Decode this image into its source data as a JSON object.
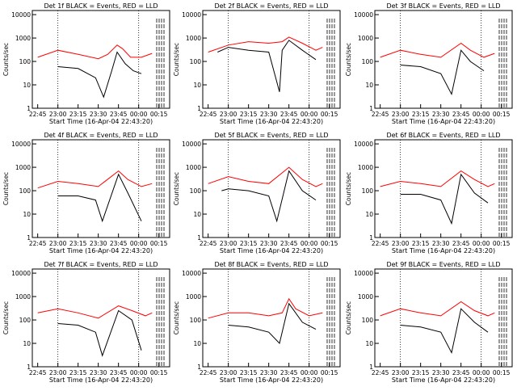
{
  "figure": {
    "ylabel": "Counts/sec",
    "xlabel": "Start Time (16-Apr-04 22:43:20)"
  },
  "colors": {
    "events": "#000000",
    "lld": "#ff0000",
    "axes": "#000000",
    "background": "#ffffff"
  },
  "chart_data": [
    {
      "type": "line",
      "title": "Det 1f BLACK = Events, RED = LLD",
      "xlabel": "Start Time (16-Apr-04 22:43:20)",
      "ylabel": "Counts/sec",
      "x_ticks": [
        "22:45",
        "23:00",
        "23:15",
        "23:30",
        "23:45",
        "00:00",
        "00:15"
      ],
      "y_ticks": [
        "1",
        "10",
        "100",
        "1000",
        "10000"
      ],
      "ylim": [
        1,
        15000
      ],
      "yscale": "log",
      "series": [
        {
          "name": "LLD",
          "color": "red",
          "x": [
            "22:45",
            "23:00",
            "23:15",
            "23:30",
            "23:37",
            "23:44",
            "23:48",
            "23:54",
            "24:02",
            "24:10"
          ],
          "y": [
            150,
            300,
            200,
            130,
            200,
            500,
            350,
            150,
            150,
            220
          ]
        },
        {
          "name": "Events",
          "color": "black",
          "x": [
            "23:00",
            "23:15",
            "23:28",
            "23:34",
            "23:40",
            "23:44",
            "23:50",
            "23:56",
            "24:02"
          ],
          "y": [
            60,
            50,
            20,
            3,
            40,
            250,
            80,
            40,
            30
          ]
        }
      ]
    },
    {
      "type": "line",
      "title": "Det 2f BLACK = Events, RED = LLD",
      "xlabel": "Start Time (16-Apr-04 22:43:20)",
      "ylabel": "Counts/sec",
      "x_ticks": [
        "22:45",
        "23:00",
        "23:15",
        "23:30",
        "23:45",
        "00:00",
        "00:15"
      ],
      "y_ticks": [
        "1",
        "10",
        "100",
        "1000",
        "10000"
      ],
      "ylim": [
        1,
        15000
      ],
      "yscale": "log",
      "series": [
        {
          "name": "LLD",
          "color": "red",
          "x": [
            "22:45",
            "23:00",
            "23:15",
            "23:30",
            "23:40",
            "23:45",
            "23:55",
            "24:05",
            "24:10"
          ],
          "y": [
            250,
            500,
            700,
            600,
            700,
            1100,
            600,
            300,
            400
          ]
        },
        {
          "name": "Events",
          "color": "black",
          "x": [
            "22:52",
            "23:00",
            "23:15",
            "23:30",
            "23:38",
            "23:40",
            "23:45",
            "23:55",
            "24:05"
          ],
          "y": [
            250,
            400,
            300,
            250,
            5,
            300,
            800,
            300,
            120
          ]
        }
      ]
    },
    {
      "type": "line",
      "title": "Det 3f BLACK = Events, RED = LLD",
      "xlabel": "Start Time (16-Apr-04 22:43:20)",
      "ylabel": "Counts/sec",
      "x_ticks": [
        "22:45",
        "23:00",
        "23:15",
        "23:30",
        "23:45",
        "00:00",
        "00:15"
      ],
      "y_ticks": [
        "1",
        "10",
        "100",
        "1000",
        "10000"
      ],
      "ylim": [
        1,
        15000
      ],
      "yscale": "log",
      "series": [
        {
          "name": "LLD",
          "color": "red",
          "x": [
            "22:45",
            "23:00",
            "23:15",
            "23:30",
            "23:45",
            "23:52",
            "24:02",
            "24:10"
          ],
          "y": [
            150,
            300,
            200,
            150,
            600,
            300,
            150,
            220
          ]
        },
        {
          "name": "Events",
          "color": "black",
          "x": [
            "23:00",
            "23:15",
            "23:30",
            "23:38",
            "23:45",
            "23:52",
            "24:02"
          ],
          "y": [
            70,
            60,
            30,
            4,
            300,
            100,
            40
          ]
        }
      ]
    },
    {
      "type": "line",
      "title": "Det 4f BLACK = Events, RED = LLD",
      "xlabel": "Start Time (16-Apr-04 22:43:20)",
      "ylabel": "Counts/sec",
      "x_ticks": [
        "22:45",
        "23:00",
        "23:15",
        "23:30",
        "23:45",
        "00:00",
        "00:15"
      ],
      "y_ticks": [
        "1",
        "10",
        "100",
        "1000",
        "10000"
      ],
      "ylim": [
        1,
        15000
      ],
      "yscale": "log",
      "series": [
        {
          "name": "LLD",
          "color": "red",
          "x": [
            "22:45",
            "23:00",
            "23:15",
            "23:30",
            "23:45",
            "23:52",
            "24:02",
            "24:10"
          ],
          "y": [
            130,
            250,
            200,
            150,
            700,
            300,
            150,
            200
          ]
        },
        {
          "name": "Events",
          "color": "black",
          "x": [
            "23:00",
            "23:15",
            "23:28",
            "23:33",
            "23:45",
            "23:52",
            "24:02"
          ],
          "y": [
            60,
            60,
            40,
            5,
            500,
            80,
            5
          ]
        }
      ]
    },
    {
      "type": "line",
      "title": "Det 5f BLACK = Events, RED = LLD",
      "xlabel": "Start Time (16-Apr-04 22:43:20)",
      "ylabel": "Counts/sec",
      "x_ticks": [
        "22:45",
        "23:00",
        "23:15",
        "23:30",
        "23:45",
        "00:00",
        "00:15"
      ],
      "y_ticks": [
        "1",
        "10",
        "100",
        "1000",
        "10000"
      ],
      "ylim": [
        1,
        15000
      ],
      "yscale": "log",
      "series": [
        {
          "name": "LLD",
          "color": "red",
          "x": [
            "22:45",
            "23:00",
            "23:15",
            "23:30",
            "23:45",
            "23:55",
            "24:05",
            "24:10"
          ],
          "y": [
            200,
            400,
            250,
            200,
            1000,
            300,
            150,
            200
          ]
        },
        {
          "name": "Events",
          "color": "black",
          "x": [
            "22:55",
            "23:00",
            "23:15",
            "23:30",
            "23:36",
            "23:45",
            "23:55",
            "24:05"
          ],
          "y": [
            100,
            120,
            100,
            60,
            5,
            700,
            100,
            40
          ]
        }
      ]
    },
    {
      "type": "line",
      "title": "Det 6f BLACK = Events, RED = LLD",
      "xlabel": "Start Time (16-Apr-04 22:43:20)",
      "ylabel": "Counts/sec",
      "x_ticks": [
        "22:45",
        "23:00",
        "23:15",
        "23:30",
        "23:45",
        "00:00",
        "00:15"
      ],
      "y_ticks": [
        "1",
        "10",
        "100",
        "1000",
        "10000"
      ],
      "ylim": [
        1,
        15000
      ],
      "yscale": "log",
      "series": [
        {
          "name": "LLD",
          "color": "red",
          "x": [
            "22:45",
            "23:00",
            "23:15",
            "23:30",
            "23:45",
            "23:55",
            "24:05",
            "24:10"
          ],
          "y": [
            150,
            250,
            200,
            150,
            700,
            300,
            150,
            200
          ]
        },
        {
          "name": "Events",
          "color": "black",
          "x": [
            "23:00",
            "23:15",
            "23:30",
            "23:38",
            "23:45",
            "23:55",
            "24:05"
          ],
          "y": [
            70,
            70,
            40,
            4,
            500,
            80,
            30
          ]
        }
      ]
    },
    {
      "type": "line",
      "title": "Det 7f BLACK = Events, RED = LLD",
      "xlabel": "Start Time (16-Apr-04 22:43:20)",
      "ylabel": "Counts/sec",
      "x_ticks": [
        "22:45",
        "23:00",
        "23:15",
        "23:30",
        "23:45",
        "00:00",
        "00:15"
      ],
      "y_ticks": [
        "1",
        "10",
        "100",
        "1000",
        "10000"
      ],
      "ylim": [
        1,
        15000
      ],
      "yscale": "log",
      "series": [
        {
          "name": "LLD",
          "color": "red",
          "x": [
            "22:45",
            "23:00",
            "23:15",
            "23:30",
            "23:45",
            "23:55",
            "24:05",
            "24:10"
          ],
          "y": [
            200,
            300,
            200,
            120,
            400,
            250,
            150,
            200
          ]
        },
        {
          "name": "Events",
          "color": "black",
          "x": [
            "23:00",
            "23:15",
            "23:28",
            "23:33",
            "23:45",
            "23:55",
            "24:02"
          ],
          "y": [
            70,
            60,
            30,
            3,
            250,
            100,
            5
          ]
        }
      ]
    },
    {
      "type": "line",
      "title": "Det 8f BLACK = Events, RED = LLD",
      "xlabel": "Start Time (16-Apr-04 22:43:20)",
      "ylabel": "Counts/sec",
      "x_ticks": [
        "22:45",
        "23:00",
        "23:15",
        "23:30",
        "23:45",
        "00:00",
        "00:15"
      ],
      "y_ticks": [
        "1",
        "10",
        "100",
        "1000",
        "10000"
      ],
      "ylim": [
        1,
        15000
      ],
      "yscale": "log",
      "series": [
        {
          "name": "LLD",
          "color": "red",
          "x": [
            "22:45",
            "23:00",
            "23:15",
            "23:30",
            "23:40",
            "23:45",
            "23:50",
            "24:00",
            "24:10"
          ],
          "y": [
            120,
            200,
            200,
            150,
            200,
            800,
            300,
            150,
            200
          ]
        },
        {
          "name": "Events",
          "color": "black",
          "x": [
            "23:00",
            "23:15",
            "23:30",
            "23:38",
            "23:45",
            "23:55",
            "24:05"
          ],
          "y": [
            60,
            50,
            30,
            10,
            500,
            80,
            40
          ]
        }
      ]
    },
    {
      "type": "line",
      "title": "Det 9f BLACK = Events, RED = LLD",
      "xlabel": "Start Time (16-Apr-04 22:43:20)",
      "ylabel": "Counts/sec",
      "x_ticks": [
        "22:45",
        "23:00",
        "23:15",
        "23:30",
        "23:45",
        "00:00",
        "00:15"
      ],
      "y_ticks": [
        "1",
        "10",
        "100",
        "1000",
        "10000"
      ],
      "ylim": [
        1,
        15000
      ],
      "yscale": "log",
      "series": [
        {
          "name": "LLD",
          "color": "red",
          "x": [
            "22:45",
            "23:00",
            "23:15",
            "23:30",
            "23:45",
            "23:55",
            "24:05",
            "24:10"
          ],
          "y": [
            150,
            300,
            200,
            150,
            600,
            250,
            150,
            200
          ]
        },
        {
          "name": "Events",
          "color": "black",
          "x": [
            "23:00",
            "23:15",
            "23:30",
            "23:38",
            "23:45",
            "23:55",
            "24:05"
          ],
          "y": [
            60,
            50,
            30,
            4,
            300,
            80,
            30
          ]
        }
      ]
    }
  ]
}
